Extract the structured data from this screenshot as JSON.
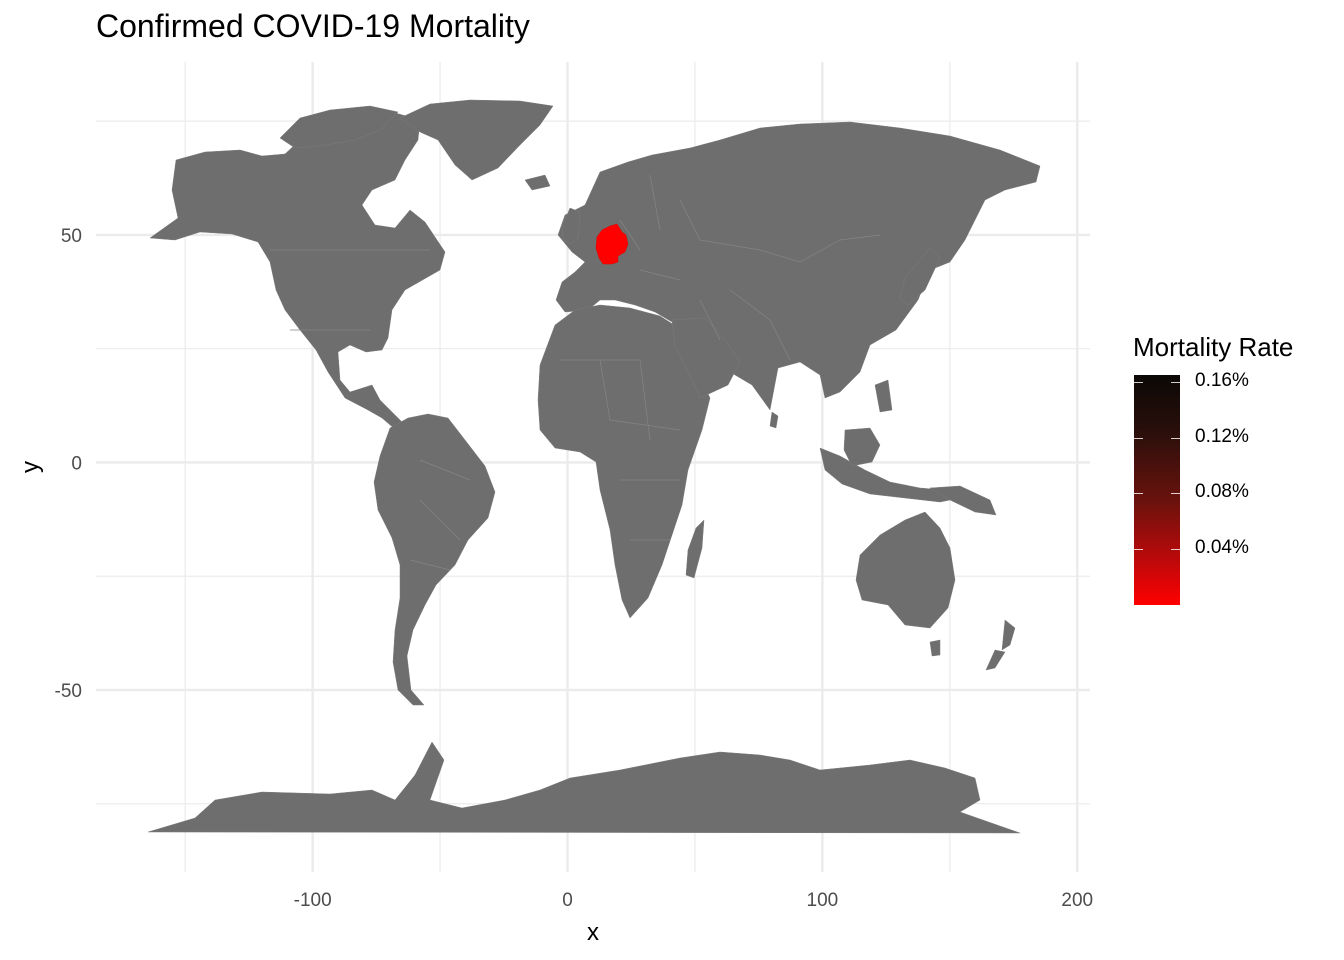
{
  "title": "Confirmed COVID-19 Mortality",
  "colors": {
    "land": "#6e6e6e",
    "highlight": "#ff0000",
    "grid": "#ebebeb",
    "legend_high": "#0b0806",
    "legend_low": "#ff0000"
  },
  "chart_data": {
    "type": "map",
    "xlabel": "x",
    "ylabel": "y",
    "xlim": [
      -185,
      205
    ],
    "ylim": [
      -90,
      88
    ],
    "x_ticks": [
      -100,
      0,
      100,
      200
    ],
    "x_tick_labels": [
      "-100",
      "0",
      "100",
      "200"
    ],
    "y_ticks": [
      -50,
      0,
      50
    ],
    "y_tick_labels": [
      "-50",
      "0",
      "50"
    ],
    "x_minor_breaks": [
      -150,
      -50,
      50,
      150
    ],
    "y_minor_breaks": [
      -75,
      -25,
      25,
      75
    ],
    "grid": true,
    "regions": [
      {
        "name": "Germany",
        "mortality_rate_pct": 0.0,
        "fill": "#ff0000"
      }
    ],
    "legend": {
      "title": "Mortality Rate",
      "position": "right",
      "type": "colorbar",
      "range_pct": [
        0.0,
        0.165
      ],
      "breaks_pct": [
        0.16,
        0.12,
        0.08,
        0.04
      ],
      "labels": [
        "0.16%",
        "0.12%",
        "0.08%",
        "0.04%"
      ]
    }
  }
}
